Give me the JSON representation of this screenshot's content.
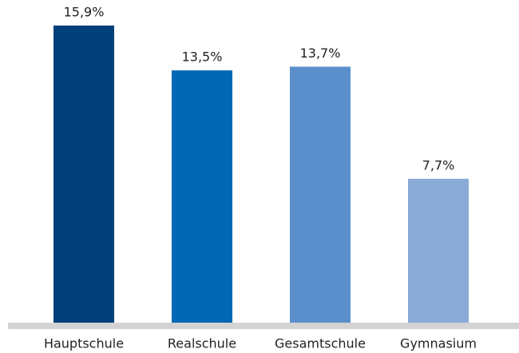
{
  "chart_data": {
    "type": "bar",
    "categories": [
      "Hauptschule",
      "Realschule",
      "Gesamtschule",
      "Gymnasium"
    ],
    "values": [
      15.9,
      13.5,
      13.7,
      7.7
    ],
    "value_labels": [
      "15,9%",
      "13,5%",
      "13,7%",
      "7,7%"
    ],
    "colors": [
      "#003f7a",
      "#0068b4",
      "#5b8fcc",
      "#8aaad8"
    ]
  }
}
